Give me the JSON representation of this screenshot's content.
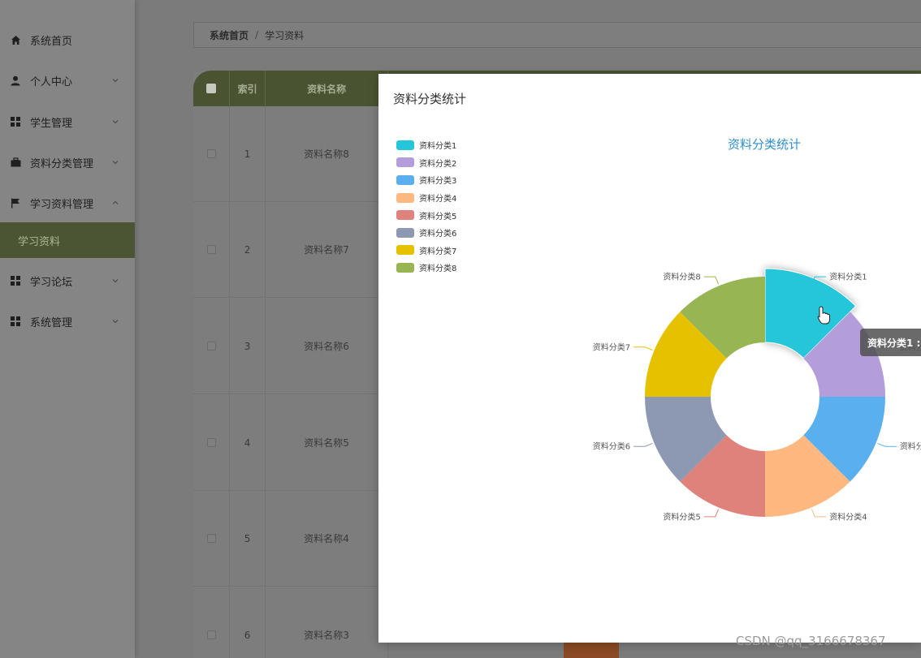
{
  "sidebar": {
    "items": [
      {
        "label": "系统首页",
        "icon": "home-icon",
        "chevron": ""
      },
      {
        "label": "个人中心",
        "icon": "user-icon",
        "chevron": "down"
      },
      {
        "label": "学生管理",
        "icon": "grid-icon",
        "chevron": "down"
      },
      {
        "label": "资料分类管理",
        "icon": "briefcase-icon",
        "chevron": "down"
      },
      {
        "label": "学习资料管理",
        "icon": "flag-icon",
        "chevron": "up"
      },
      {
        "label": "学习资料",
        "icon": "",
        "chevron": "",
        "active_sub": true
      },
      {
        "label": "学习论坛",
        "icon": "grid-icon",
        "chevron": "down"
      },
      {
        "label": "系统管理",
        "icon": "grid-icon",
        "chevron": "down"
      }
    ]
  },
  "breadcrumb": {
    "home": "系统首页",
    "separator": "/",
    "current": "学习资料"
  },
  "table": {
    "headers": {
      "index": "索引",
      "name": "资料名称"
    },
    "rows": [
      {
        "index": "1",
        "name": "资料名称8"
      },
      {
        "index": "2",
        "name": "资料名称7"
      },
      {
        "index": "3",
        "name": "资料名称6"
      },
      {
        "index": "4",
        "name": "资料名称5"
      },
      {
        "index": "5",
        "name": "资料名称4"
      },
      {
        "index": "6",
        "name": "资料名称3"
      }
    ]
  },
  "modal": {
    "title": "资料分类统计"
  },
  "chart_data": {
    "type": "pie",
    "title": "资料分类统计",
    "donut": true,
    "legend_position": "top-left",
    "categories": [
      "资料分类1",
      "资料分类2",
      "资料分类3",
      "资料分类4",
      "资料分类5",
      "资料分类6",
      "资料分类7",
      "资料分类8"
    ],
    "values": [
      1,
      1,
      1,
      1,
      1,
      1,
      1,
      1
    ],
    "colors": [
      "#26c6da",
      "#b39ddb",
      "#5aafef",
      "#ffb980",
      "#e0827c",
      "#8d98b3",
      "#e5c100",
      "#97b552"
    ],
    "highlighted": "资料分类1",
    "tooltip": "资料分类1 :"
  },
  "watermark": "CSDN @qq_3166678367",
  "accent_color": "#4a5331"
}
